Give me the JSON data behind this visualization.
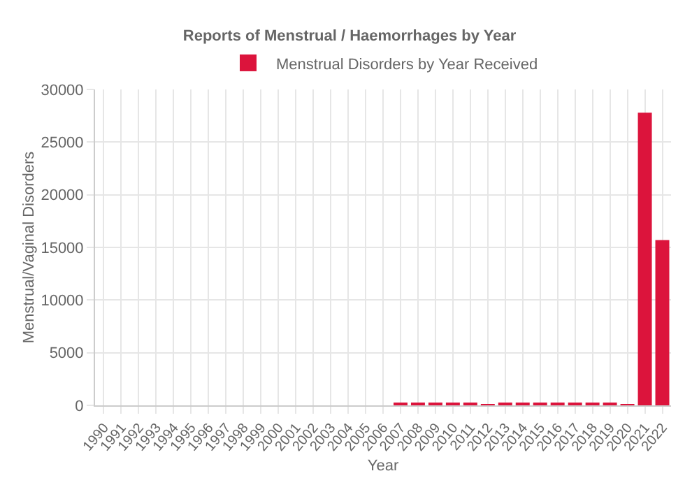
{
  "chart_data": {
    "type": "bar",
    "title": "Reports of Menstrual / Haemorrhages by Year",
    "xlabel": "Year",
    "ylabel": "Menstrual/Vaginal Disorders",
    "categories": [
      "1990",
      "1991",
      "1992",
      "1993",
      "1994",
      "1995",
      "1996",
      "1997",
      "1998",
      "1999",
      "2000",
      "2001",
      "2002",
      "2003",
      "2004",
      "2005",
      "2006",
      "2007",
      "2008",
      "2009",
      "2010",
      "2011",
      "2012",
      "2013",
      "2014",
      "2015",
      "2016",
      "2017",
      "2018",
      "2019",
      "2020",
      "2021",
      "2022"
    ],
    "series": [
      {
        "name": "Menstrual Disorders by Year Received",
        "color": "#dc143c",
        "values": [
          0,
          0,
          0,
          0,
          0,
          0,
          0,
          0,
          0,
          0,
          0,
          0,
          0,
          0,
          0,
          0,
          0,
          150,
          200,
          150,
          150,
          150,
          100,
          150,
          150,
          200,
          200,
          150,
          150,
          150,
          100,
          27800,
          15700
        ]
      }
    ],
    "ylim": [
      0,
      30000
    ],
    "yticks": [
      0,
      5000,
      10000,
      15000,
      20000,
      25000,
      30000
    ],
    "grid": true,
    "legend": "top"
  }
}
